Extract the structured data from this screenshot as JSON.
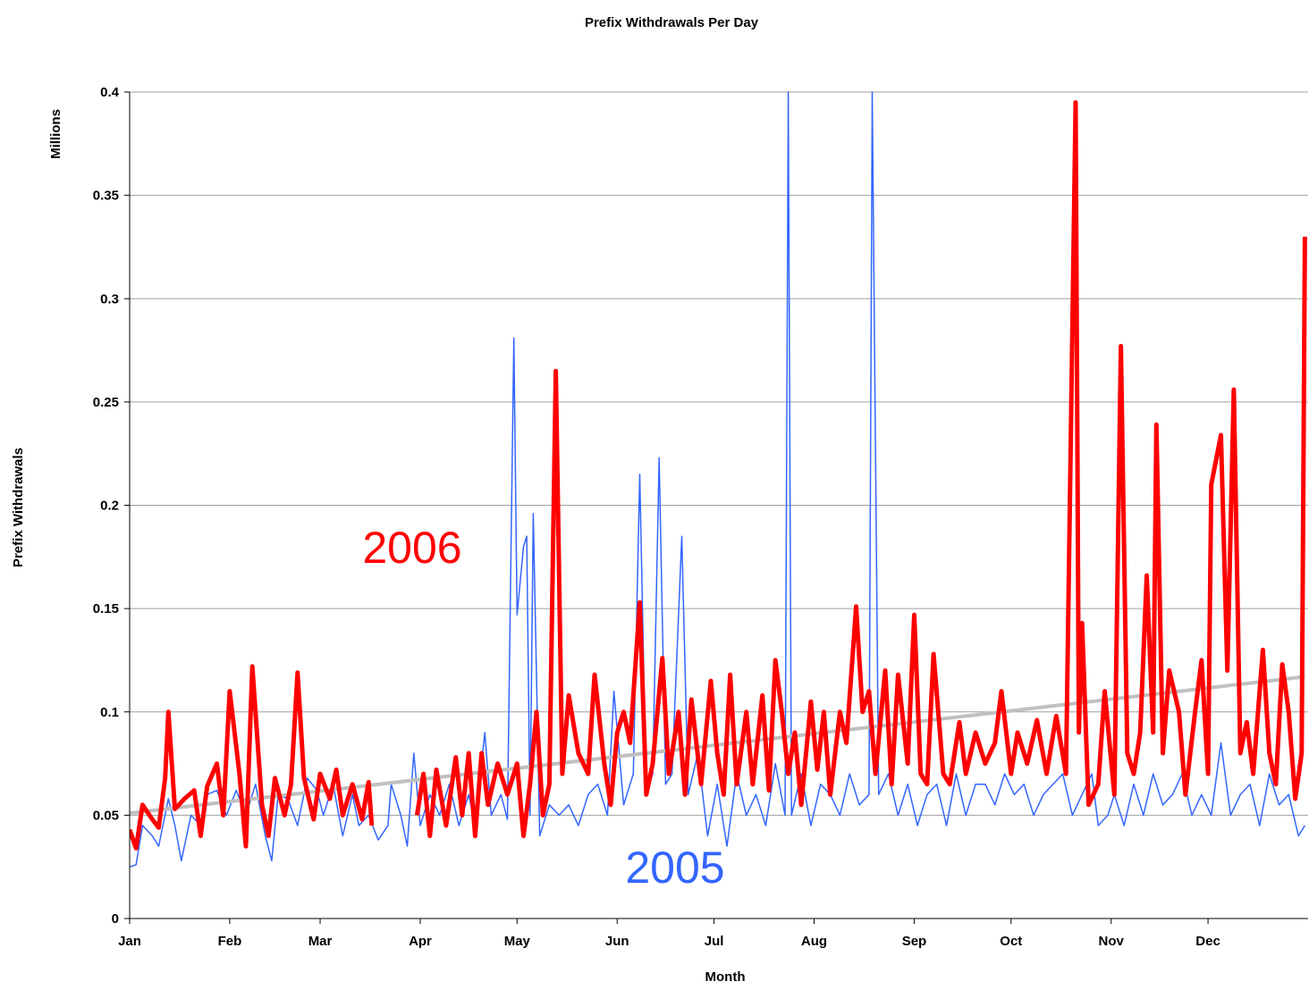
{
  "chart_data": {
    "type": "line",
    "title": "Prefix Withdrawals Per Day",
    "x_label": "Month",
    "y_label": "Prefix Withdrawals",
    "y_unit": "Millions",
    "xlim": [
      0,
      365
    ],
    "xticks": [
      {
        "value": 0,
        "label": "Jan"
      },
      {
        "value": 31,
        "label": "Feb"
      },
      {
        "value": 59,
        "label": "Mar"
      },
      {
        "value": 90,
        "label": "Apr"
      },
      {
        "value": 120,
        "label": "May"
      },
      {
        "value": 151,
        "label": "Jun"
      },
      {
        "value": 181,
        "label": "Jul"
      },
      {
        "value": 212,
        "label": "Aug"
      },
      {
        "value": 243,
        "label": "Sep"
      },
      {
        "value": 273,
        "label": "Oct"
      },
      {
        "value": 304,
        "label": "Nov"
      },
      {
        "value": 334,
        "label": "Dec"
      }
    ],
    "ylim": [
      0,
      0.4
    ],
    "yticks": [
      0,
      0.05,
      0.1,
      0.15,
      0.2,
      0.25,
      0.3,
      0.35,
      0.4
    ],
    "grid": true,
    "series": [
      {
        "name": "2005",
        "color": "#3366ff",
        "width": 1.5,
        "x": [
          0,
          2,
          4,
          7,
          9,
          12,
          14,
          16,
          19,
          22,
          24,
          27,
          30,
          33,
          36,
          39,
          42,
          44,
          46,
          49,
          52,
          55,
          58,
          60,
          63,
          66,
          69,
          71,
          74,
          77,
          80,
          81,
          84,
          86,
          88,
          90,
          93,
          96,
          99,
          102,
          105,
          107,
          110,
          112,
          115,
          117,
          119,
          120,
          122,
          123,
          124,
          125,
          127,
          130,
          133,
          136,
          139,
          142,
          145,
          148,
          150,
          153,
          156,
          158,
          160,
          162,
          164,
          166,
          168,
          171,
          173,
          176,
          179,
          182,
          185,
          188,
          191,
          194,
          197,
          200,
          203,
          204,
          205,
          208,
          211,
          214,
          217,
          220,
          223,
          226,
          229,
          230,
          232,
          235,
          238,
          241,
          244,
          247,
          250,
          253,
          256,
          259,
          262,
          265,
          268,
          271,
          274,
          277,
          280,
          283,
          286,
          289,
          292,
          295,
          298,
          300,
          303,
          305,
          308,
          311,
          314,
          317,
          320,
          323,
          326,
          329,
          332,
          335,
          338,
          341,
          344,
          347,
          350,
          353,
          356,
          359,
          362,
          364
        ],
        "values": [
          0.025,
          0.026,
          0.045,
          0.04,
          0.035,
          0.058,
          0.045,
          0.028,
          0.05,
          0.045,
          0.06,
          0.062,
          0.05,
          0.062,
          0.05,
          0.065,
          0.04,
          0.028,
          0.06,
          0.058,
          0.045,
          0.068,
          0.062,
          0.05,
          0.065,
          0.04,
          0.06,
          0.045,
          0.05,
          0.038,
          0.045,
          0.065,
          0.05,
          0.035,
          0.08,
          0.045,
          0.06,
          0.05,
          0.065,
          0.045,
          0.06,
          0.045,
          0.09,
          0.05,
          0.06,
          0.048,
          0.281,
          0.147,
          0.18,
          0.185,
          0.05,
          0.196,
          0.04,
          0.055,
          0.05,
          0.055,
          0.045,
          0.06,
          0.065,
          0.05,
          0.11,
          0.055,
          0.07,
          0.215,
          0.06,
          0.07,
          0.223,
          0.065,
          0.07,
          0.185,
          0.06,
          0.08,
          0.04,
          0.065,
          0.035,
          0.07,
          0.05,
          0.06,
          0.045,
          0.075,
          0.05,
          0.4,
          0.05,
          0.07,
          0.045,
          0.065,
          0.06,
          0.05,
          0.07,
          0.055,
          0.06,
          0.4,
          0.06,
          0.07,
          0.05,
          0.065,
          0.045,
          0.06,
          0.065,
          0.045,
          0.07,
          0.05,
          0.065,
          0.065,
          0.055,
          0.07,
          0.06,
          0.065,
          0.05,
          0.06,
          0.065,
          0.07,
          0.05,
          0.06,
          0.07,
          0.045,
          0.05,
          0.06,
          0.045,
          0.065,
          0.05,
          0.07,
          0.055,
          0.06,
          0.07,
          0.05,
          0.06,
          0.05,
          0.085,
          0.05,
          0.06,
          0.065,
          0.045,
          0.07,
          0.055,
          0.06,
          0.04,
          0.045
        ]
      },
      {
        "color": "#c0c0c0",
        "width": 4,
        "x": [
          0,
          364
        ],
        "values": [
          0.051,
          0.117
        ]
      },
      {
        "name": "2006",
        "color": "#ff0000",
        "width": 5,
        "x": [
          0,
          2,
          4,
          7,
          9,
          11,
          12,
          14,
          17,
          20,
          22,
          24,
          27,
          29,
          31,
          34,
          36,
          38,
          41,
          43,
          45,
          48,
          50,
          52,
          54,
          57,
          59,
          62,
          64,
          66,
          69,
          72,
          74,
          75,
          82,
          89,
          91,
          93,
          95,
          98,
          101,
          103,
          105,
          107,
          109,
          111,
          114,
          117,
          120,
          122,
          124,
          126,
          128,
          130,
          132,
          134,
          136,
          139,
          142,
          144,
          147,
          149,
          151,
          153,
          155,
          158,
          160,
          162,
          165,
          167,
          170,
          172,
          174,
          177,
          180,
          182,
          184,
          186,
          188,
          191,
          193,
          196,
          198,
          200,
          202,
          204,
          206,
          208,
          211,
          213,
          215,
          217,
          220,
          222,
          225,
          227,
          229,
          231,
          234,
          236,
          238,
          241,
          243,
          245,
          247,
          249,
          252,
          254,
          257,
          259,
          262,
          265,
          268,
          270,
          273,
          275,
          278,
          281,
          284,
          287,
          290,
          293,
          294,
          295,
          297,
          300,
          302,
          305,
          307,
          309,
          311,
          313,
          315,
          317,
          318,
          320,
          322,
          325,
          327,
          330,
          332,
          334,
          335,
          338,
          340,
          342,
          344,
          346,
          348,
          351,
          353,
          355,
          357,
          359,
          361,
          363,
          364
        ],
        "values": [
          0.043,
          0.034,
          0.055,
          0.048,
          0.044,
          0.068,
          0.1,
          0.053,
          0.058,
          0.062,
          0.04,
          0.064,
          0.075,
          0.05,
          0.11,
          0.07,
          0.035,
          0.122,
          0.055,
          0.04,
          0.068,
          0.05,
          0.065,
          0.119,
          0.068,
          0.048,
          0.07,
          0.058,
          0.072,
          0.05,
          0.065,
          0.048,
          0.066,
          0.045,
          null,
          0.05,
          0.07,
          0.04,
          0.072,
          0.045,
          0.078,
          0.05,
          0.08,
          0.04,
          0.08,
          0.055,
          0.075,
          0.06,
          0.075,
          0.04,
          0.065,
          0.1,
          0.05,
          0.065,
          0.265,
          0.07,
          0.108,
          0.08,
          0.07,
          0.118,
          0.075,
          0.055,
          0.09,
          0.1,
          0.085,
          0.153,
          0.06,
          0.075,
          0.126,
          0.07,
          0.1,
          0.06,
          0.106,
          0.065,
          0.115,
          0.08,
          0.06,
          0.118,
          0.065,
          0.1,
          0.065,
          0.108,
          0.062,
          0.125,
          0.1,
          0.07,
          0.09,
          0.055,
          0.105,
          0.072,
          0.1,
          0.06,
          0.1,
          0.085,
          0.151,
          0.1,
          0.11,
          0.07,
          0.12,
          0.065,
          0.118,
          0.075,
          0.147,
          0.07,
          0.065,
          0.128,
          0.07,
          0.065,
          0.095,
          0.07,
          0.09,
          0.075,
          0.085,
          0.11,
          0.07,
          0.09,
          0.075,
          0.096,
          0.07,
          0.098,
          0.07,
          0.395,
          0.09,
          0.143,
          0.055,
          0.065,
          0.11,
          0.06,
          0.277,
          0.08,
          0.07,
          0.09,
          0.166,
          0.09,
          0.239,
          0.08,
          0.12,
          0.1,
          0.06,
          0.1,
          0.125,
          0.07,
          0.21,
          0.234,
          0.12,
          0.256,
          0.08,
          0.095,
          0.07,
          0.13,
          0.08,
          0.065,
          0.123,
          0.1,
          0.058,
          0.08,
          0.33
        ]
      }
    ]
  }
}
